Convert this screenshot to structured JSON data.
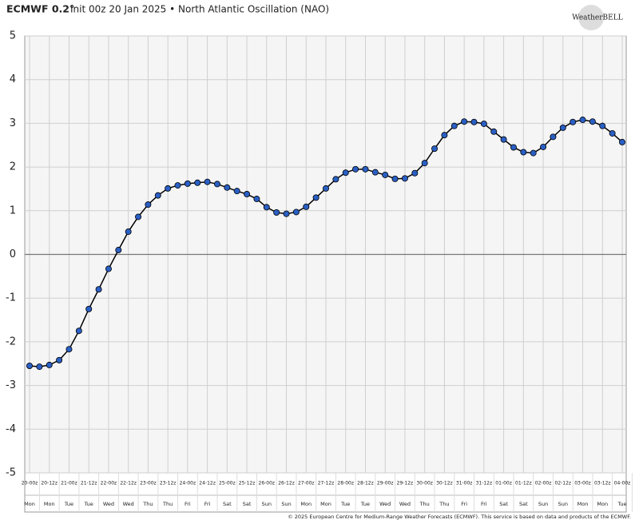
{
  "chart_data": {
    "type": "line",
    "title_bold": "ECMWF 0.2°",
    "title": "Init 00z 20 Jan 2025 • North Atlantic Oscillation (NAO)",
    "logo": "WeatherBELL",
    "footer": "© 2025 European Centre for Medium-Range Weather Forecasts (ECMWF). This service is based on data and products of the ECMWF.",
    "categories": [
      "20-00z",
      null,
      "20-12z",
      null,
      "21-00z",
      null,
      "21-12z",
      null,
      "22-00z",
      null,
      "22-12z",
      null,
      "23-00z",
      null,
      "23-12z",
      null,
      "24-00z",
      null,
      "24-12z",
      null,
      "25-00z",
      null,
      "25-12z",
      null,
      "26-00z",
      null,
      "26-12z",
      null,
      "27-00z",
      null,
      "27-12z",
      null,
      "28-00z",
      null,
      "28-12z",
      null,
      "29-00z",
      null,
      "29-12z",
      null,
      "30-00z",
      null,
      "30-12z",
      null,
      "31-00z",
      null,
      "31-12z",
      null,
      "01-00z",
      null,
      "01-12z",
      null,
      "02-00z",
      null,
      "02-12z",
      null,
      "03-00z",
      null,
      "03-12z",
      null,
      "04-00z"
    ],
    "weekdays": [
      "Mon",
      null,
      "Mon",
      null,
      "Tue",
      null,
      "Tue",
      null,
      "Wed",
      null,
      "Wed",
      null,
      "Thu",
      null,
      "Thu",
      null,
      "Fri",
      null,
      "Fri",
      null,
      "Sat",
      null,
      "Sat",
      null,
      "Sun",
      null,
      "Sun",
      null,
      "Mon",
      null,
      "Mon",
      null,
      "Tue",
      null,
      "Tue",
      null,
      "Wed",
      null,
      "Wed",
      null,
      "Thu",
      null,
      "Thu",
      null,
      "Fri",
      null,
      "Fri",
      null,
      "Sat",
      null,
      "Sat",
      null,
      "Sun",
      null,
      "Sun",
      null,
      "Mon",
      null,
      "Mon",
      null,
      "Tue"
    ],
    "series": [
      {
        "name": "NAO",
        "color": "#2a5fc4",
        "values": [
          -2.55,
          -2.57,
          -2.53,
          -2.42,
          -2.17,
          -1.75,
          -1.25,
          -0.8,
          -0.33,
          0.1,
          0.52,
          0.86,
          1.14,
          1.35,
          1.51,
          1.58,
          1.62,
          1.64,
          1.66,
          1.61,
          1.53,
          1.45,
          1.38,
          1.27,
          1.08,
          0.96,
          0.93,
          0.97,
          1.09,
          1.3,
          1.51,
          1.72,
          1.87,
          1.95,
          1.95,
          1.88,
          1.82,
          1.73,
          1.74,
          1.86,
          2.09,
          2.42,
          2.73,
          2.94,
          3.04,
          3.03,
          2.99,
          2.81,
          2.63,
          2.45,
          2.34,
          2.32,
          2.46,
          2.69,
          2.9,
          3.03,
          3.08,
          3.04,
          2.94,
          2.77,
          2.57
        ]
      }
    ],
    "ylim": [
      -5,
      5
    ],
    "yticks": [
      -5,
      -4,
      -3,
      -2,
      -1,
      0,
      1,
      2,
      3,
      4,
      5
    ],
    "grid": true
  }
}
